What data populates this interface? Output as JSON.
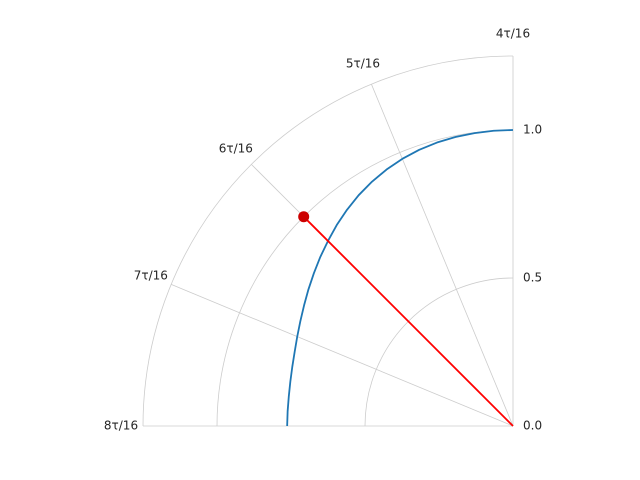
{
  "chart_data": {
    "type": "line",
    "projection": "polar",
    "theta_unit": "τ (turns)",
    "theta_range": [
      "4τ/16",
      "8τ/16"
    ],
    "r_lim": [
      0,
      1.25
    ],
    "grid": true,
    "angle_tick_labels": [
      "4τ/16",
      "5τ/16",
      "6τ/16",
      "7τ/16",
      "8τ/16"
    ],
    "angle_tick_values_turns": [
      0.25,
      0.3125,
      0.375,
      0.4375,
      0.5
    ],
    "radial_tick_labels": [
      "0.0",
      "0.5",
      "1.0"
    ],
    "radial_tick_values": [
      0.0,
      0.5,
      1.0
    ],
    "series": [
      {
        "color": "#1f77b4",
        "theta_turns": [
          0.25,
          0.2604,
          0.2708,
          0.2813,
          0.2917,
          0.3021,
          0.3125,
          0.3229,
          0.3333,
          0.3438,
          0.3542,
          0.3646,
          0.375,
          0.3854,
          0.3958,
          0.4063,
          0.4167,
          0.4271,
          0.4375,
          0.4479,
          0.4583,
          0.4688,
          0.4792,
          0.4896,
          0.5
        ],
        "r": [
          1.0,
          0.9995,
          0.998,
          0.9955,
          0.9915,
          0.9855,
          0.977,
          0.966,
          0.953,
          0.938,
          0.921,
          0.903,
          0.884,
          0.866,
          0.848,
          0.831,
          0.815,
          0.801,
          0.789,
          0.779,
          0.772,
          0.767,
          0.764,
          0.763,
          0.763
        ]
      }
    ],
    "highlight": {
      "color": "#ff0000",
      "marker_color": "#cc0000",
      "theta_turns": 0.375,
      "r": 1.0
    }
  }
}
